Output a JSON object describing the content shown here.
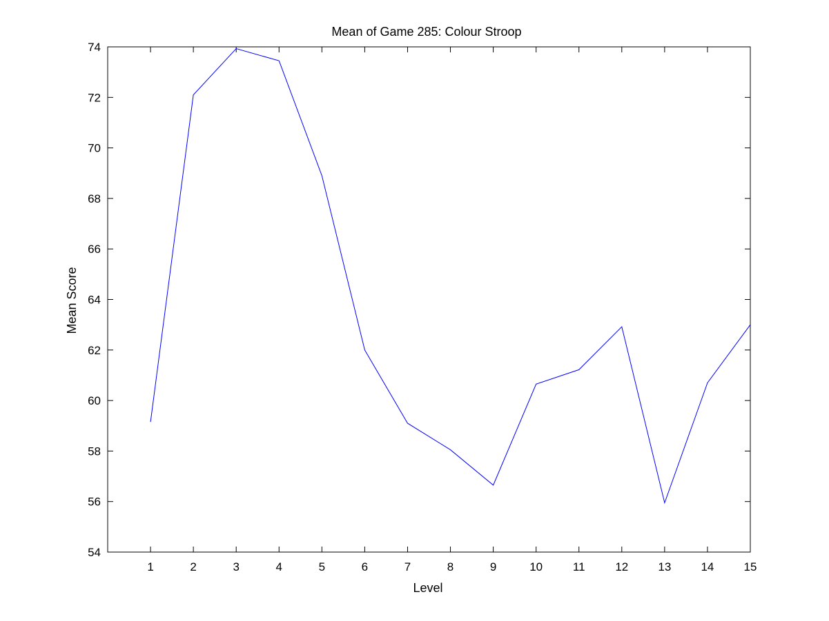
{
  "chart_data": {
    "type": "line",
    "title": "Mean of Game 285: Colour Stroop",
    "xlabel": "Level",
    "ylabel": "Mean Score",
    "xlim": [
      0,
      15
    ],
    "ylim": [
      54,
      74
    ],
    "xticks": [
      1,
      2,
      3,
      4,
      5,
      6,
      7,
      8,
      9,
      10,
      11,
      12,
      13,
      14,
      15
    ],
    "yticks": [
      54,
      56,
      58,
      60,
      62,
      64,
      66,
      68,
      70,
      72,
      74
    ],
    "grid": false,
    "line_color": "#0000ff",
    "x": [
      1,
      2,
      3,
      4,
      5,
      6,
      7,
      8,
      9,
      10,
      11,
      12,
      13,
      14,
      15
    ],
    "series": [
      {
        "values": [
          59.15,
          72.1,
          73.93,
          73.45,
          68.9,
          62.0,
          59.1,
          58.05,
          56.65,
          60.65,
          61.22,
          62.92,
          55.95,
          60.7,
          63.0
        ]
      }
    ]
  }
}
